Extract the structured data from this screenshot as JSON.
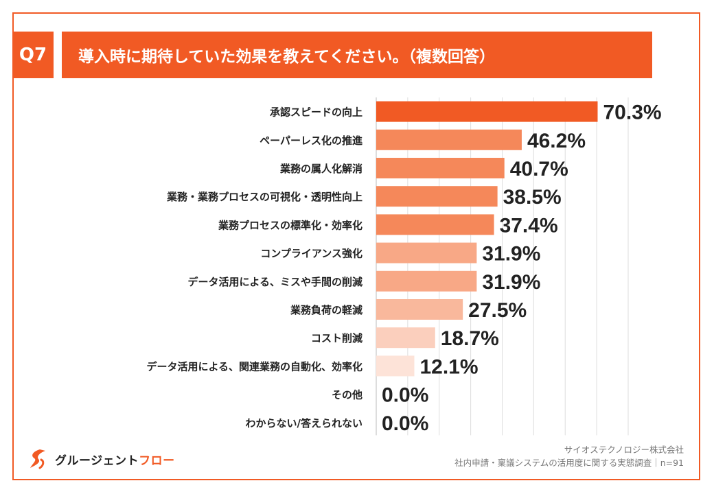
{
  "question": {
    "badge": "Q7",
    "title": "導入時に期待していた効果を教えてください。（複数回答）"
  },
  "chart_data": {
    "type": "bar",
    "orientation": "horizontal",
    "title": "導入時に期待していた効果を教えてください。（複数回答）",
    "categories": [
      "承認スピードの向上",
      "ペーパーレス化の推進",
      "業務の属人化解消",
      "業務・業務プロセスの可視化・透明性向上",
      "業務プロセスの標準化・効率化",
      "コンプライアンス強化",
      "データ活用による、ミスや手間の削減",
      "業務負荷の軽減",
      "コスト削減",
      "データ活用による、関連業務の自動化、効率化",
      "その他",
      "わからない/答えられない"
    ],
    "values": [
      70.3,
      46.2,
      40.7,
      38.5,
      37.4,
      31.9,
      31.9,
      27.5,
      18.7,
      12.1,
      0.0,
      0.0
    ],
    "value_labels": [
      "70.3%",
      "46.2%",
      "40.7%",
      "38.5%",
      "37.4%",
      "31.9%",
      "31.9%",
      "27.5%",
      "18.7%",
      "12.1%",
      "0.0%",
      "0.0%"
    ],
    "unit": "%",
    "xlim": [
      0,
      80
    ],
    "grid": true,
    "bar_colors": [
      "#f15a24",
      "#f5885a",
      "#f5885a",
      "#f5885a",
      "#f5885a",
      "#f8a886",
      "#f8a886",
      "#f9b89c",
      "#fbcfbd",
      "#fde3d8",
      "#fde3d8",
      "#fde3d8"
    ]
  },
  "source": {
    "company": "サイオステクノロジー株式会社",
    "survey": "社内申請・稟議システムの活用度に関する実態調査｜n=91"
  },
  "logo": {
    "name_main": "グルージェント",
    "name_accent": "フロー",
    "icon": "swirl-logo-icon",
    "color": "#f15a24"
  }
}
